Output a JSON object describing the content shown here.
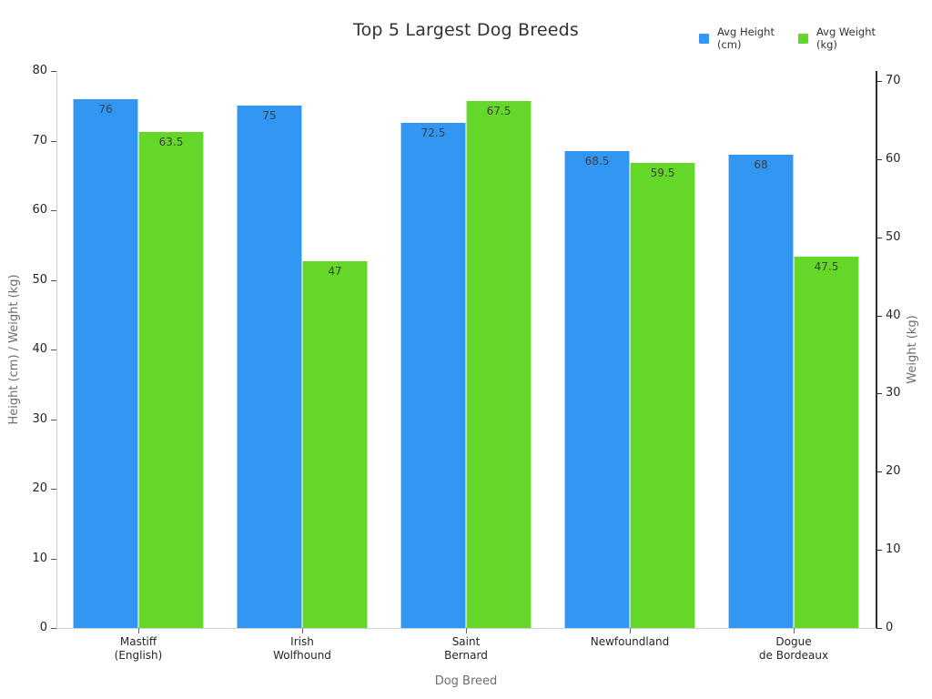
{
  "chart_data": {
    "type": "bar",
    "title": "Top 5 Largest Dog Breeds",
    "xlabel": "Dog Breed",
    "ylabel_left": "Height (cm) / Weight (kg)",
    "ylabel_right": "Weight (kg)",
    "categories": [
      "Mastiff\n(English)",
      "Irish\nWolfhound",
      "Saint\nBernard",
      "Newfoundland",
      "Dogue\nde Bordeaux"
    ],
    "series": [
      {
        "name": "Avg Height\n(cm)",
        "axis": "left",
        "color": "#3296F3",
        "values": [
          76,
          75,
          72.5,
          68.5,
          68
        ],
        "labels": [
          "76",
          "75",
          "72.5",
          "68.5",
          "68"
        ]
      },
      {
        "name": "Avg Weight\n(kg)",
        "axis": "right",
        "color": "#64D728",
        "values": [
          63.5,
          47,
          67.5,
          59.5,
          47.5
        ],
        "labels": [
          "63.5",
          "47",
          "67.5",
          "59.5",
          "47.5"
        ]
      }
    ],
    "left_axis": {
      "ticks": [
        0,
        10,
        20,
        30,
        40,
        50,
        60,
        70,
        80
      ],
      "max_at_top": 80
    },
    "right_axis": {
      "ticks": [
        0,
        10,
        20,
        30,
        40,
        50,
        60,
        70
      ],
      "max_at_top": 71.3
    },
    "grid": false,
    "legend_position": "top-right",
    "background": "#ffffff"
  }
}
